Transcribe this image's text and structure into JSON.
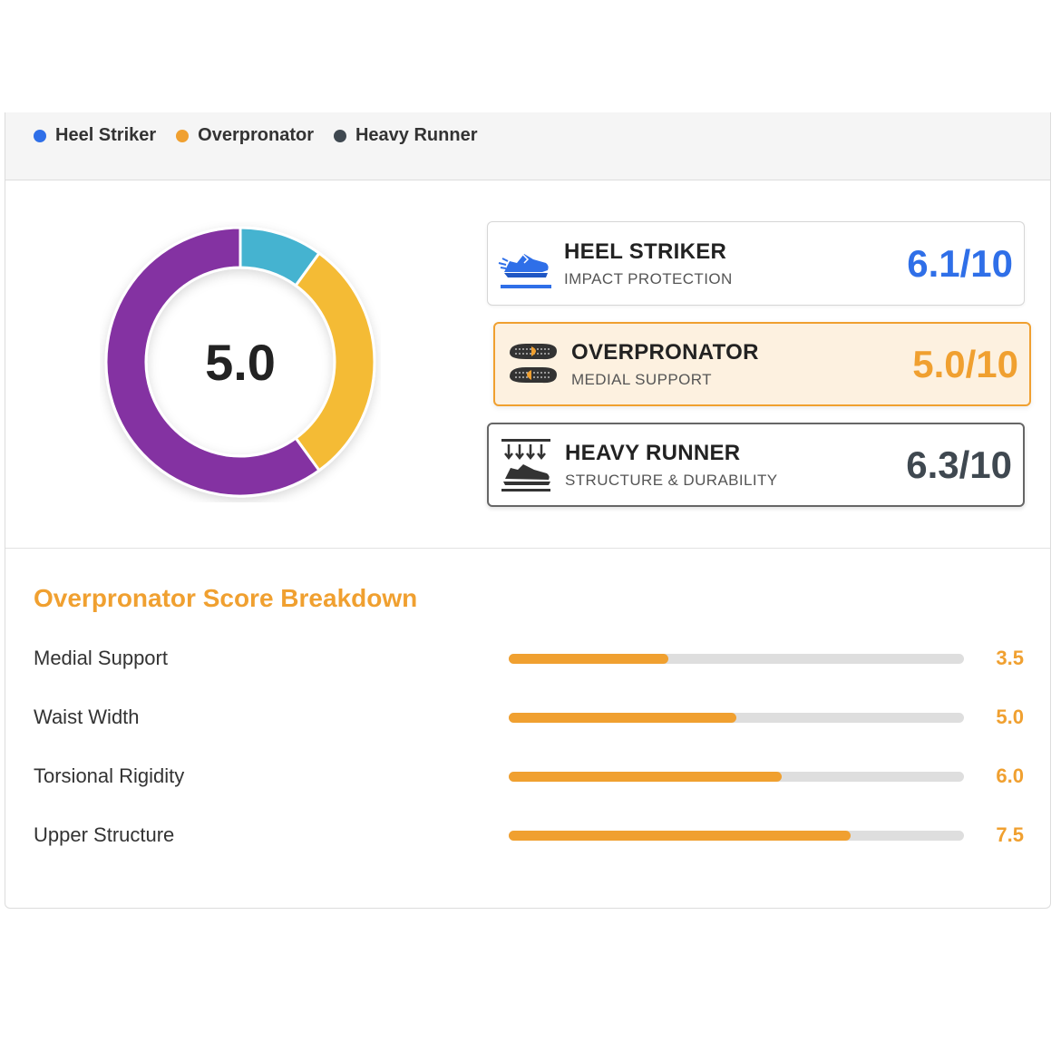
{
  "tabs": [
    {
      "label": "Heel Striker",
      "color": "#2f6fe8"
    },
    {
      "label": "Overpronator",
      "color": "#f0a030"
    },
    {
      "label": "Heavy Runner",
      "color": "#3f4850"
    }
  ],
  "donut": {
    "center_value": "5.0",
    "segments": [
      {
        "value": 10,
        "color": "#45b3d0"
      },
      {
        "value": 30,
        "color": "#f4bb35"
      },
      {
        "value": 60,
        "color": "#8432a2"
      }
    ]
  },
  "cards": {
    "heel": {
      "title": "HEEL STRIKER",
      "subtitle": "IMPACT PROTECTION",
      "score": "6.1/10",
      "score_color": "#2f6fe8",
      "icon": "running-shoe-icon"
    },
    "over": {
      "title": "OVERPRONATOR",
      "subtitle": "MEDIAL SUPPORT",
      "score": "5.0/10",
      "score_color": "#f0a030",
      "icon": "footprints-icon"
    },
    "heavy": {
      "title": "HEAVY RUNNER",
      "subtitle": "STRUCTURE & DURABILITY",
      "score": "6.3/10",
      "score_color": "#3f4850",
      "icon": "shoe-pressure-icon"
    }
  },
  "breakdown": {
    "title": "Overpronator Score Breakdown",
    "rows": [
      {
        "label": "Medial Support",
        "value": "3.5",
        "level": 0.35
      },
      {
        "label": "Waist Width",
        "value": "5.0",
        "level": 0.5
      },
      {
        "label": "Torsional Rigidity",
        "value": "6.0",
        "level": 0.6
      },
      {
        "label": "Upper Structure",
        "value": "7.5",
        "level": 0.75
      }
    ]
  }
}
